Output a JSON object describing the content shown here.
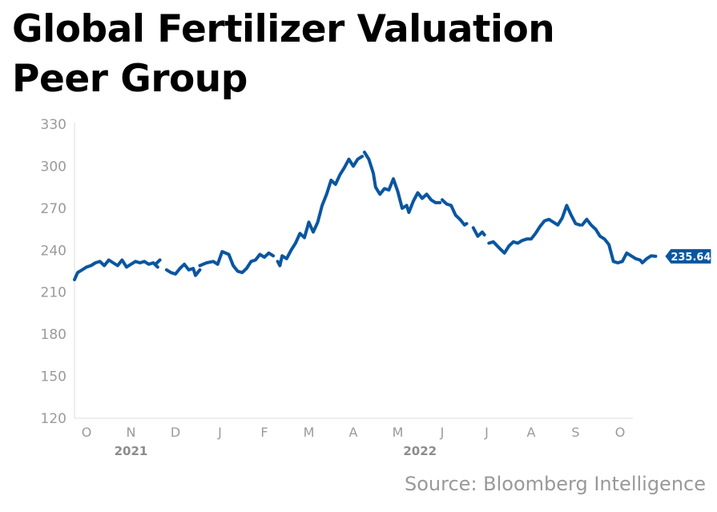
{
  "title_line1": "Global Fertilizer Valuation",
  "title_line2": "Peer Group",
  "source": "Source: Bloomberg Intelligence",
  "chart_data": {
    "type": "line",
    "title": "Global Fertilizer Valuation Peer Group",
    "xlabel": "",
    "ylabel": "",
    "ylim": [
      120,
      330
    ],
    "yticks": [
      120,
      150,
      180,
      210,
      240,
      270,
      300,
      330
    ],
    "x_tick_labels": [
      "O",
      "N",
      "D",
      "J",
      "F",
      "M",
      "A",
      "M",
      "J",
      "J",
      "A",
      "S",
      "O"
    ],
    "year_labels": [
      {
        "label": "2021",
        "at_month_index": 1
      },
      {
        "label": "2022",
        "at_month_index": 7.5
      }
    ],
    "grid": false,
    "line_color": "#0a56a0",
    "last_value_label": "235.64",
    "series": [
      {
        "name": "Global Fertilizer Valuation Peer Group",
        "segments": [
          [
            [
              -0.27,
              219
            ],
            [
              -0.2,
              224
            ],
            [
              -0.1,
              226
            ],
            [
              0.0,
              228
            ],
            [
              0.1,
              229
            ],
            [
              0.2,
              231
            ],
            [
              0.3,
              232
            ],
            [
              0.4,
              229
            ],
            [
              0.5,
              233
            ],
            [
              0.6,
              231
            ],
            [
              0.7,
              229
            ],
            [
              0.8,
              233
            ],
            [
              0.9,
              228
            ],
            [
              1.0,
              230
            ],
            [
              1.1,
              232
            ],
            [
              1.2,
              231
            ],
            [
              1.3,
              232
            ],
            [
              1.4,
              230
            ],
            [
              1.5,
              231
            ],
            [
              1.6,
              228
            ]
          ],
          [
            [
              1.55,
              230
            ],
            [
              1.65,
              233
            ]
          ],
          [
            [
              1.8,
              226
            ],
            [
              1.9,
              224
            ],
            [
              2.0,
              223
            ],
            [
              2.1,
              227
            ],
            [
              2.2,
              230
            ],
            [
              2.3,
              226
            ],
            [
              2.4,
              227
            ],
            [
              2.45,
              222
            ],
            [
              2.55,
              226
            ]
          ],
          [
            [
              2.55,
              229
            ],
            [
              2.7,
              231
            ],
            [
              2.85,
              232
            ],
            [
              2.95,
              230
            ],
            [
              3.05,
              239
            ],
            [
              3.2,
              237
            ],
            [
              3.3,
              229
            ],
            [
              3.4,
              225
            ],
            [
              3.5,
              224
            ],
            [
              3.6,
              227
            ],
            [
              3.7,
              232
            ],
            [
              3.8,
              233
            ],
            [
              3.9,
              237
            ],
            [
              4.0,
              235
            ],
            [
              4.1,
              238
            ],
            [
              4.2,
              236
            ]
          ],
          [
            [
              4.3,
              232
            ],
            [
              4.35,
              229
            ],
            [
              4.4,
              236
            ],
            [
              4.5,
              234
            ],
            [
              4.6,
              240
            ],
            [
              4.7,
              245
            ],
            [
              4.8,
              252
            ],
            [
              4.9,
              249
            ],
            [
              5.0,
              260
            ],
            [
              5.1,
              253
            ],
            [
              5.2,
              260
            ],
            [
              5.3,
              272
            ],
            [
              5.4,
              280
            ],
            [
              5.5,
              290
            ],
            [
              5.6,
              287
            ],
            [
              5.7,
              294
            ],
            [
              5.8,
              299
            ],
            [
              5.9,
              305
            ],
            [
              6.0,
              300
            ],
            [
              6.1,
              305
            ],
            [
              6.2,
              307
            ]
          ],
          [
            [
              6.25,
              310
            ],
            [
              6.35,
              305
            ],
            [
              6.45,
              295
            ],
            [
              6.5,
              285
            ],
            [
              6.6,
              280
            ],
            [
              6.7,
              284
            ],
            [
              6.8,
              283
            ],
            [
              6.9,
              291
            ],
            [
              7.0,
              282
            ],
            [
              7.1,
              270
            ],
            [
              7.2,
              272
            ],
            [
              7.25,
              267
            ],
            [
              7.35,
              275
            ],
            [
              7.45,
              281
            ],
            [
              7.55,
              277
            ],
            [
              7.65,
              280
            ],
            [
              7.75,
              276
            ],
            [
              7.85,
              274
            ],
            [
              7.95,
              274
            ]
          ],
          [
            [
              8.0,
              276
            ],
            [
              8.1,
              273
            ],
            [
              8.2,
              272
            ],
            [
              8.3,
              265
            ],
            [
              8.4,
              262
            ],
            [
              8.5,
              258
            ],
            [
              8.55,
              259
            ]
          ],
          [
            [
              8.7,
              256
            ],
            [
              8.8,
              250
            ],
            [
              8.9,
              253
            ],
            [
              8.95,
              251
            ]
          ],
          [
            [
              9.05,
              245
            ],
            [
              9.15,
              246
            ],
            [
              9.3,
              241
            ],
            [
              9.4,
              238
            ],
            [
              9.5,
              243
            ],
            [
              9.6,
              246
            ],
            [
              9.7,
              245
            ],
            [
              9.8,
              247
            ],
            [
              9.9,
              248
            ],
            [
              10.0,
              248
            ],
            [
              10.1,
              252
            ],
            [
              10.2,
              257
            ],
            [
              10.3,
              261
            ],
            [
              10.4,
              262
            ],
            [
              10.5,
              260
            ],
            [
              10.6,
              258
            ],
            [
              10.7,
              263
            ],
            [
              10.8,
              272
            ],
            [
              10.9,
              265
            ],
            [
              11.0,
              259
            ],
            [
              11.1,
              258
            ]
          ],
          [
            [
              11.15,
              258
            ],
            [
              11.25,
              262
            ],
            [
              11.35,
              258
            ],
            [
              11.45,
              255
            ],
            [
              11.55,
              250
            ],
            [
              11.65,
              248
            ],
            [
              11.75,
              244
            ],
            [
              11.85,
              232
            ],
            [
              11.95,
              231
            ],
            [
              12.05,
              232
            ],
            [
              12.15,
              238
            ],
            [
              12.25,
              236
            ],
            [
              12.35,
              234
            ],
            [
              12.45,
              233
            ],
            [
              12.5,
              231
            ],
            [
              12.6,
              234
            ],
            [
              12.7,
              236
            ],
            [
              12.8,
              235.64
            ]
          ]
        ]
      }
    ]
  }
}
